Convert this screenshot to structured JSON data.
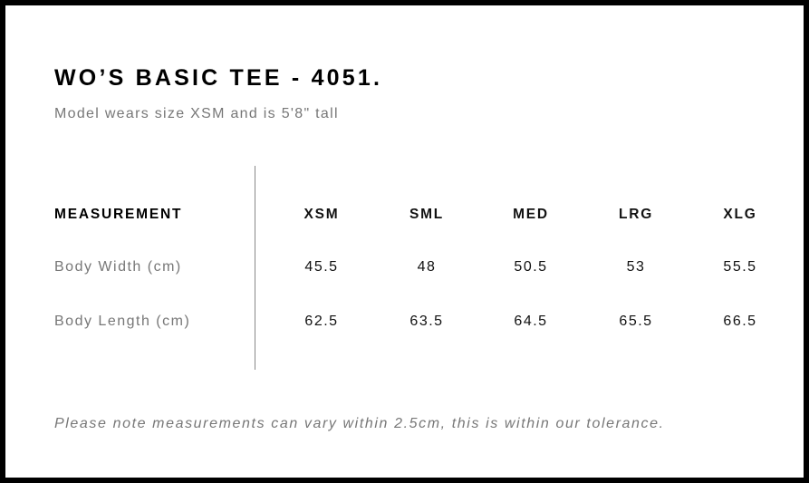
{
  "title": "WO’S BASIC TEE - 4051.",
  "subtitle": "Model wears size XSM and is 5'8\" tall",
  "table": {
    "header": [
      "MEASUREMENT",
      "XSM",
      "SML",
      "MED",
      "LRG",
      "XLG"
    ],
    "rows": [
      {
        "label": "Body Width (cm)",
        "values": [
          "45.5",
          "48",
          "50.5",
          "53",
          "55.5"
        ]
      },
      {
        "label": "Body Length (cm)",
        "values": [
          "62.5",
          "63.5",
          "64.5",
          "65.5",
          "66.5"
        ]
      }
    ]
  },
  "note": "Please note measurements can vary within 2.5cm, this is within our tolerance."
}
